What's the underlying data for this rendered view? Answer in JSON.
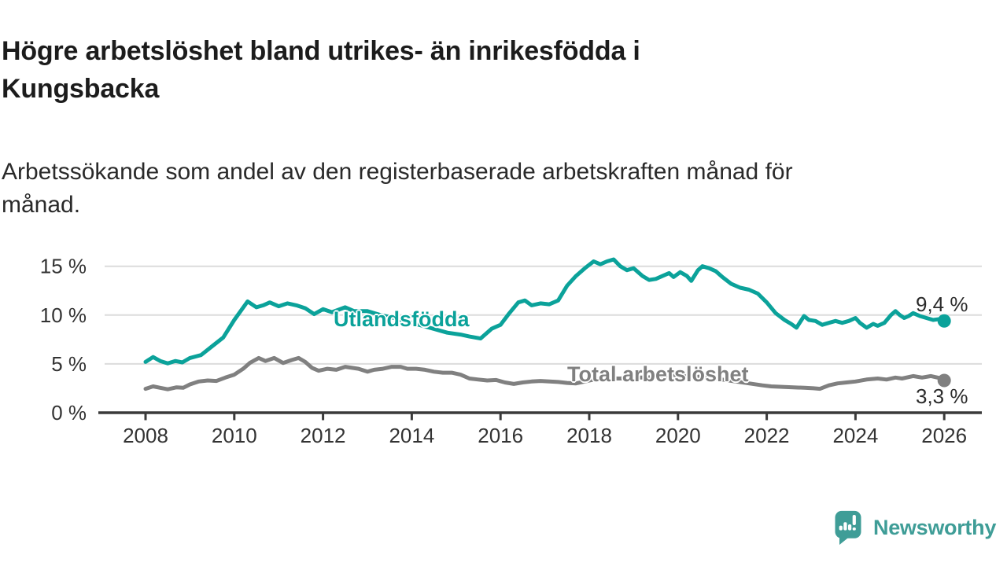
{
  "header": {
    "title": "Högre arbetslöshet bland utrikes- än inrikesfödda i\nKungsbacka",
    "subtitle": "Arbetssökande som andel av den registerbaserade arbetskraften månad för\nmånad."
  },
  "branding": {
    "logo_text": "Newsworthy",
    "logo_color": "#3F9D97",
    "logo_icon": "newsworthy-speech-bubble-bar-chart-icon"
  },
  "colors": {
    "foreign_born_line": "#0BA29A",
    "total_line": "#808080",
    "gridline": "#DCDCDC",
    "axis": "#3A3A3A",
    "tick_text": "#333333",
    "title_text": "#1C1C1C"
  },
  "chart_data": {
    "type": "line",
    "unit": "%",
    "x_axis": {
      "ticks": [
        2008,
        2010,
        2012,
        2014,
        2016,
        2018,
        2020,
        2022,
        2024,
        2026
      ],
      "range": [
        2007.8,
        2026.8
      ]
    },
    "y_axis": {
      "ticks": [
        {
          "value": 0,
          "label": "0 %"
        },
        {
          "value": 5,
          "label": "5 %"
        },
        {
          "value": 10,
          "label": "10 %"
        },
        {
          "value": 15,
          "label": "15 %"
        }
      ],
      "range": [
        0,
        16.5
      ],
      "grid_values": [
        5,
        10,
        15
      ]
    },
    "series": [
      {
        "name": "Utlandsfödda",
        "color": "#0BA29A",
        "end_value": 9.4,
        "end_value_label": "9,4 %",
        "points": [
          [
            2008.0,
            5.2
          ],
          [
            2008.17,
            5.7
          ],
          [
            2008.33,
            5.3
          ],
          [
            2008.5,
            5.05
          ],
          [
            2008.67,
            5.3
          ],
          [
            2008.83,
            5.15
          ],
          [
            2009.0,
            5.6
          ],
          [
            2009.25,
            5.9
          ],
          [
            2009.5,
            6.8
          ],
          [
            2009.75,
            7.7
          ],
          [
            2010.0,
            9.5
          ],
          [
            2010.3,
            11.4
          ],
          [
            2010.5,
            10.8
          ],
          [
            2010.65,
            11.0
          ],
          [
            2010.8,
            11.3
          ],
          [
            2011.0,
            10.9
          ],
          [
            2011.2,
            11.2
          ],
          [
            2011.4,
            11.0
          ],
          [
            2011.6,
            10.7
          ],
          [
            2011.8,
            10.1
          ],
          [
            2012.0,
            10.6
          ],
          [
            2012.2,
            10.3
          ],
          [
            2012.5,
            10.8
          ],
          [
            2012.7,
            10.4
          ],
          [
            2013.0,
            10.4
          ],
          [
            2013.3,
            10.0
          ],
          [
            2013.6,
            9.7
          ],
          [
            2014.0,
            9.2
          ],
          [
            2014.4,
            8.7
          ],
          [
            2014.8,
            8.2
          ],
          [
            2015.1,
            8.0
          ],
          [
            2015.3,
            7.8
          ],
          [
            2015.55,
            7.6
          ],
          [
            2015.8,
            8.6
          ],
          [
            2016.0,
            9.0
          ],
          [
            2016.2,
            10.2
          ],
          [
            2016.4,
            11.3
          ],
          [
            2016.55,
            11.5
          ],
          [
            2016.7,
            11.0
          ],
          [
            2016.9,
            11.2
          ],
          [
            2017.1,
            11.1
          ],
          [
            2017.3,
            11.5
          ],
          [
            2017.5,
            13.0
          ],
          [
            2017.7,
            14.0
          ],
          [
            2017.9,
            14.8
          ],
          [
            2018.1,
            15.5
          ],
          [
            2018.25,
            15.2
          ],
          [
            2018.4,
            15.5
          ],
          [
            2018.55,
            15.7
          ],
          [
            2018.7,
            15.0
          ],
          [
            2018.85,
            14.6
          ],
          [
            2019.0,
            14.8
          ],
          [
            2019.2,
            14.0
          ],
          [
            2019.35,
            13.6
          ],
          [
            2019.5,
            13.7
          ],
          [
            2019.65,
            14.0
          ],
          [
            2019.8,
            14.3
          ],
          [
            2019.9,
            13.9
          ],
          [
            2020.05,
            14.4
          ],
          [
            2020.2,
            14.0
          ],
          [
            2020.3,
            13.5
          ],
          [
            2020.45,
            14.6
          ],
          [
            2020.55,
            15.0
          ],
          [
            2020.7,
            14.8
          ],
          [
            2020.85,
            14.5
          ],
          [
            2021.0,
            13.9
          ],
          [
            2021.2,
            13.2
          ],
          [
            2021.4,
            12.8
          ],
          [
            2021.6,
            12.6
          ],
          [
            2021.8,
            12.2
          ],
          [
            2022.0,
            11.3
          ],
          [
            2022.2,
            10.2
          ],
          [
            2022.4,
            9.5
          ],
          [
            2022.55,
            9.1
          ],
          [
            2022.67,
            8.7
          ],
          [
            2022.84,
            9.9
          ],
          [
            2022.95,
            9.5
          ],
          [
            2023.1,
            9.4
          ],
          [
            2023.25,
            9.0
          ],
          [
            2023.4,
            9.2
          ],
          [
            2023.55,
            9.4
          ],
          [
            2023.7,
            9.2
          ],
          [
            2023.85,
            9.4
          ],
          [
            2024.0,
            9.7
          ],
          [
            2024.1,
            9.2
          ],
          [
            2024.25,
            8.7
          ],
          [
            2024.4,
            9.1
          ],
          [
            2024.5,
            8.9
          ],
          [
            2024.65,
            9.2
          ],
          [
            2024.8,
            10.0
          ],
          [
            2024.9,
            10.4
          ],
          [
            2025.0,
            10.0
          ],
          [
            2025.1,
            9.7
          ],
          [
            2025.2,
            9.9
          ],
          [
            2025.3,
            10.2
          ],
          [
            2025.45,
            9.9
          ],
          [
            2025.6,
            9.7
          ],
          [
            2025.75,
            9.5
          ],
          [
            2025.9,
            9.6
          ],
          [
            2026.0,
            9.4
          ]
        ]
      },
      {
        "name": "Total arbetslöshet",
        "color": "#808080",
        "end_value": 3.3,
        "end_value_label": "3,3 %",
        "points": [
          [
            2008.0,
            2.45
          ],
          [
            2008.17,
            2.7
          ],
          [
            2008.33,
            2.55
          ],
          [
            2008.5,
            2.4
          ],
          [
            2008.7,
            2.6
          ],
          [
            2008.85,
            2.55
          ],
          [
            2009.0,
            2.9
          ],
          [
            2009.2,
            3.2
          ],
          [
            2009.4,
            3.3
          ],
          [
            2009.6,
            3.25
          ],
          [
            2009.8,
            3.6
          ],
          [
            2010.0,
            3.9
          ],
          [
            2010.2,
            4.5
          ],
          [
            2010.35,
            5.1
          ],
          [
            2010.55,
            5.6
          ],
          [
            2010.7,
            5.3
          ],
          [
            2010.9,
            5.6
          ],
          [
            2011.1,
            5.1
          ],
          [
            2011.3,
            5.4
          ],
          [
            2011.45,
            5.6
          ],
          [
            2011.6,
            5.2
          ],
          [
            2011.75,
            4.6
          ],
          [
            2011.9,
            4.3
          ],
          [
            2012.1,
            4.5
          ],
          [
            2012.3,
            4.4
          ],
          [
            2012.5,
            4.7
          ],
          [
            2012.65,
            4.6
          ],
          [
            2012.8,
            4.5
          ],
          [
            2013.0,
            4.2
          ],
          [
            2013.15,
            4.4
          ],
          [
            2013.35,
            4.5
          ],
          [
            2013.55,
            4.7
          ],
          [
            2013.75,
            4.7
          ],
          [
            2013.9,
            4.5
          ],
          [
            2014.1,
            4.5
          ],
          [
            2014.3,
            4.4
          ],
          [
            2014.5,
            4.2
          ],
          [
            2014.7,
            4.1
          ],
          [
            2014.9,
            4.1
          ],
          [
            2015.1,
            3.9
          ],
          [
            2015.3,
            3.5
          ],
          [
            2015.5,
            3.4
          ],
          [
            2015.7,
            3.3
          ],
          [
            2015.9,
            3.35
          ],
          [
            2016.1,
            3.1
          ],
          [
            2016.3,
            2.95
          ],
          [
            2016.5,
            3.1
          ],
          [
            2016.7,
            3.2
          ],
          [
            2016.9,
            3.25
          ],
          [
            2017.1,
            3.2
          ],
          [
            2017.3,
            3.15
          ],
          [
            2017.5,
            3.05
          ],
          [
            2017.7,
            3.0
          ],
          [
            2017.9,
            3.2
          ],
          [
            2018.1,
            3.4
          ],
          [
            2018.4,
            3.5
          ],
          [
            2018.7,
            3.5
          ],
          [
            2019.0,
            3.6
          ],
          [
            2019.3,
            3.6
          ],
          [
            2019.6,
            3.7
          ],
          [
            2019.85,
            3.9
          ],
          [
            2020.1,
            3.8
          ],
          [
            2020.3,
            3.6
          ],
          [
            2020.5,
            3.7
          ],
          [
            2020.75,
            3.6
          ],
          [
            2021.0,
            3.4
          ],
          [
            2021.3,
            3.2
          ],
          [
            2021.6,
            3.0
          ],
          [
            2021.9,
            2.8
          ],
          [
            2022.1,
            2.7
          ],
          [
            2022.35,
            2.65
          ],
          [
            2022.6,
            2.6
          ],
          [
            2022.85,
            2.55
          ],
          [
            2023.05,
            2.5
          ],
          [
            2023.2,
            2.45
          ],
          [
            2023.4,
            2.8
          ],
          [
            2023.6,
            3.0
          ],
          [
            2023.8,
            3.1
          ],
          [
            2024.0,
            3.2
          ],
          [
            2024.25,
            3.4
          ],
          [
            2024.5,
            3.5
          ],
          [
            2024.7,
            3.4
          ],
          [
            2024.9,
            3.6
          ],
          [
            2025.05,
            3.5
          ],
          [
            2025.3,
            3.75
          ],
          [
            2025.5,
            3.6
          ],
          [
            2025.7,
            3.75
          ],
          [
            2025.9,
            3.55
          ],
          [
            2026.0,
            3.3
          ]
        ]
      }
    ]
  }
}
